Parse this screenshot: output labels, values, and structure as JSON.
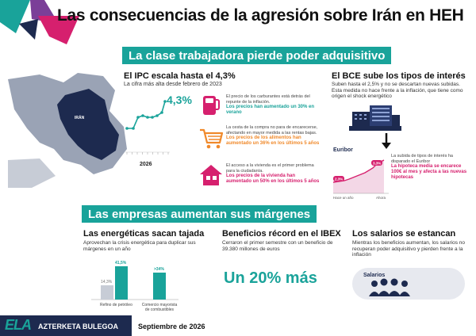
{
  "header": {
    "title": "Las consecuencias de la agresión sobre Irán en HEH"
  },
  "section1": {
    "band": "La clase trabajadora pierde poder adquisitivo",
    "ipc": {
      "title": "El IPC escala hasta el 4,3%",
      "subtitle": "La cifra más alta desde febrero de 2023",
      "map_label": "IRÁN",
      "value": "4,3%",
      "year": "2026"
    },
    "items": [
      {
        "icon": "fuel-pump-icon",
        "text": "El precio de los carburantes está detrás del repunte de la inflación.",
        "highlight": "Los precios han aumentado un 30% en verano"
      },
      {
        "icon": "shopping-cart-icon",
        "text": "La cesta de la compra no para de encarecerse, afectando en mayor medida a las rentas bajas.",
        "highlight": "Los precios de los alimentos han aumentado un 36% en los últimos 5 años"
      },
      {
        "icon": "house-icon",
        "text": "El acceso a la vivienda es el primer problema para la ciudadanía.",
        "highlight": "Los precios de la vivienda han aumentado un 50% en los últimos 5 años"
      }
    ],
    "bce": {
      "title": "El BCE sube los tipos de interés",
      "text": "Suben hasta el 2,5% y no se descartan nuevas subidas. Esta medida no hace frente a la inflación, que tiene como origen el shock energético",
      "euribor_label": "Euribor",
      "val_low": "2,3%",
      "val_high": "3,3%",
      "x_left": "Hace un año",
      "x_right": "Ahora",
      "note": "La subida de tipos de interés ha disparado el Euribor",
      "highlight": "La hipoteca media se encarece 100€ al mes y afecta a las nuevas hipotecas"
    }
  },
  "section2": {
    "band": "Las empresas aumentan sus márgenes",
    "energy": {
      "title": "Las energéticas sacan tajada",
      "text": "Aprovechan la crisis energética para duplicar sus márgenes en un año",
      "bar1_before": "14,3%",
      "bar1_after": "41,5%",
      "bar2_after": ">34%",
      "label1": "Refino de petróleo",
      "label2": "Comercio mayorista de combustibles"
    },
    "ibex": {
      "title": "Beneficios récord en el IBEX",
      "text": "Cerraron el primer semestre con un beneficio de 39.380 millones de euros",
      "big": "Un 20% más"
    },
    "wages": {
      "title": "Los salarios se estancan",
      "text": "Mientras los beneficios aumentan, los salarios no recuperan poder adquisitivo y pierden frente a la inflación",
      "badge": "Salarios"
    }
  },
  "footer": {
    "logo": "ELA",
    "org": "AZTERKETA BULEGOA",
    "date": "Septiembre de 2026"
  },
  "colors": {
    "teal": "#19a39a",
    "magenta": "#d6206e",
    "navy": "#1d2a4f",
    "purple": "#7b3f98"
  }
}
